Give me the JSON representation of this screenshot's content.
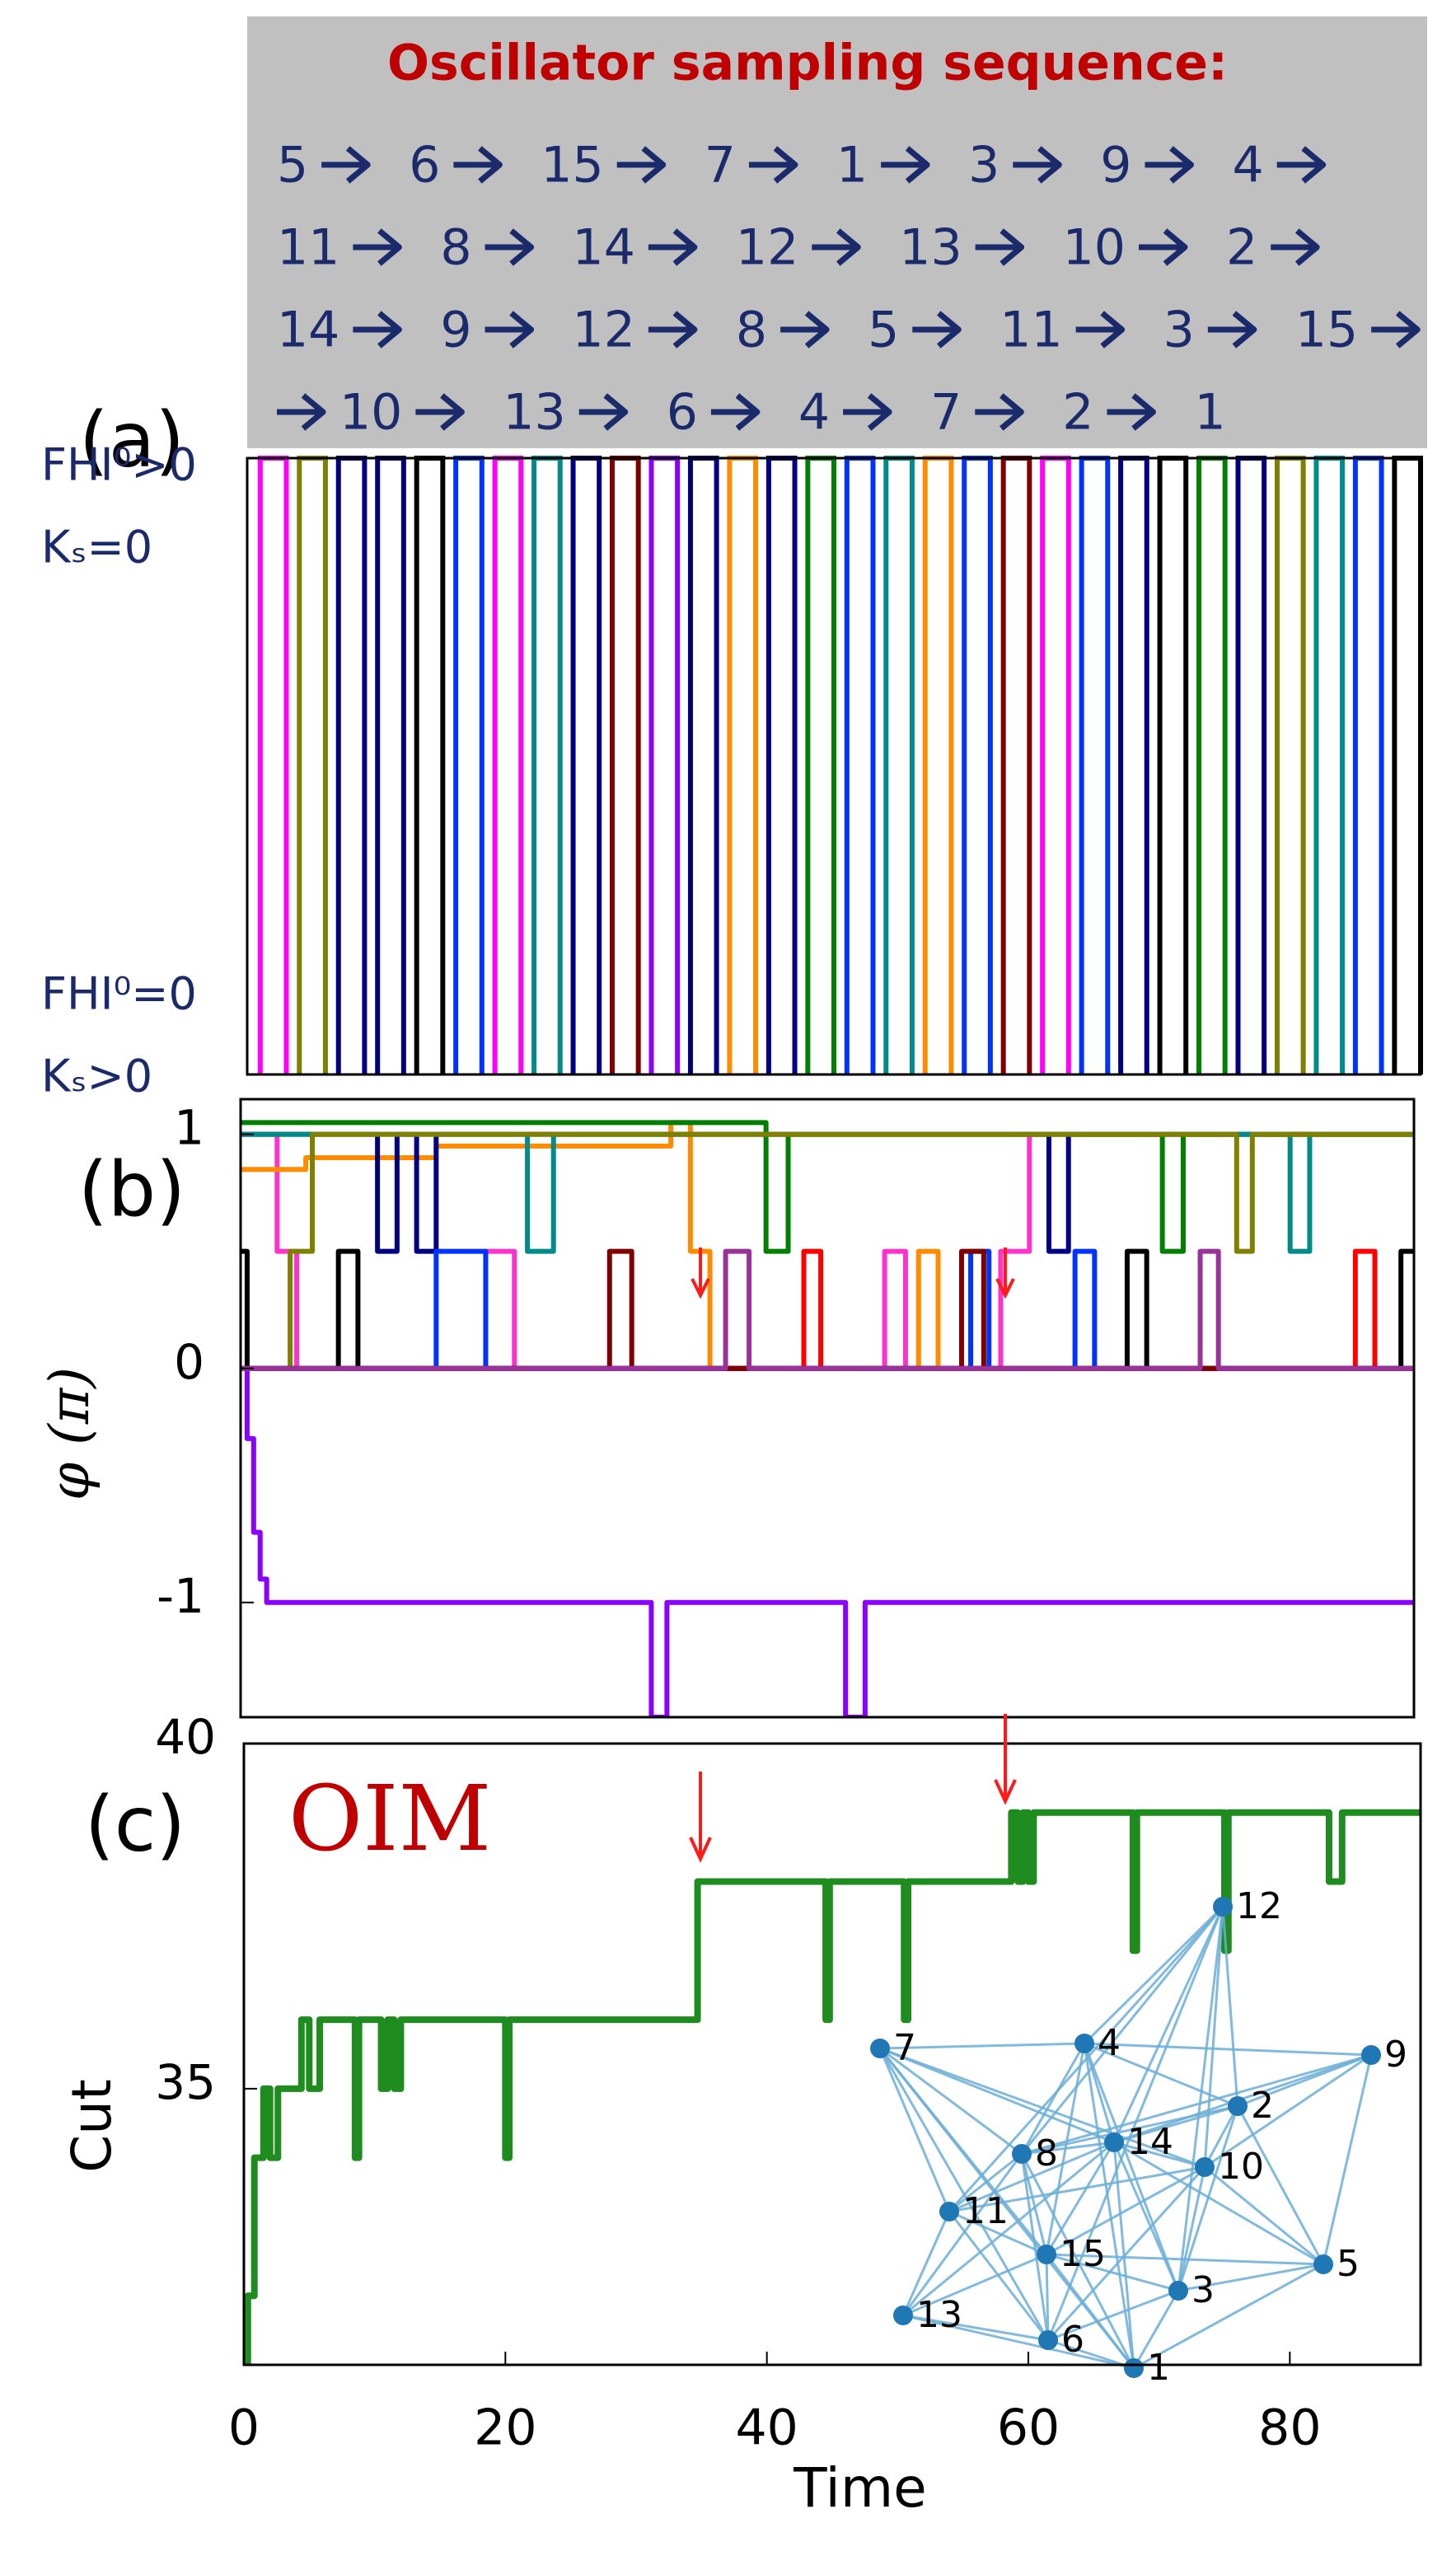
{
  "header": {
    "title": "Oscillator sampling sequence:",
    "sequence_lines": [
      [
        5,
        6,
        15,
        7,
        1,
        3,
        9,
        4
      ],
      [
        11,
        8,
        14,
        12,
        13,
        10,
        2
      ],
      [
        14,
        9,
        12,
        8,
        5,
        11,
        3,
        15
      ],
      [
        10,
        13,
        6,
        4,
        7,
        2,
        1
      ]
    ]
  },
  "chart_data": [
    {
      "type": "pulse",
      "panel_label": "(a)",
      "xlim": [
        0,
        90
      ],
      "ylim": [
        0,
        1
      ],
      "yticks": [
        {
          "value": 1,
          "label": "FHI⁰>0"
        },
        {
          "value": 0,
          "label": "FHI⁰=0"
        }
      ],
      "ytick_sublabels": [
        "Kₛ=0",
        "Kₛ>0"
      ],
      "x": [
        1,
        4,
        7,
        10,
        13,
        16,
        19,
        22,
        25,
        28,
        31,
        34,
        37,
        40,
        43,
        46,
        49,
        52,
        55,
        58,
        61,
        64,
        67,
        70,
        73,
        76,
        79,
        82,
        85,
        88
      ],
      "values": [
        1,
        1,
        1,
        1,
        1,
        1,
        1,
        1,
        1,
        1,
        1,
        1,
        1,
        1,
        1,
        1,
        1,
        1,
        1,
        1,
        1,
        1,
        1,
        1,
        1,
        1,
        1,
        1,
        1,
        1
      ],
      "colors": [
        "#ff00ff",
        "#808000",
        "#000080",
        "#000080",
        "#000000",
        "#0033ff",
        "#ff00ff",
        "#008b8b",
        "#000080",
        "#800000",
        "#8b00ff",
        "#000080",
        "#ff8c00",
        "#000080",
        "#008000",
        "#0033ff",
        "#008b8b",
        "#ff8c00",
        "#0033ff",
        "#800000",
        "#ff00ff",
        "#0033ff",
        "#000080",
        "#000000",
        "#008000",
        "#000080",
        "#808000",
        "#008b8b",
        "#0033ff",
        "#000000"
      ]
    },
    {
      "type": "line",
      "step": true,
      "panel_label": "(b)",
      "ylabel": "φ (π)",
      "xlim": [
        0,
        90
      ],
      "ylim": [
        -1.49,
        1.15
      ],
      "yticks": [
        -1,
        0,
        1
      ],
      "series": [
        {
          "color": "#8b00ff",
          "x": [
            0,
            0.5,
            1,
            1.5,
            2,
            31.5,
            32.7,
            46.4,
            47.9,
            90
          ],
          "values": [
            0,
            -0.3,
            -0.7,
            -0.9,
            -1,
            -1.49,
            -1,
            -1.49,
            -1,
            -1
          ]
        },
        {
          "color": "#ff33cc",
          "x": [
            0,
            2.8,
            4.3,
            18.8,
            21,
            49.4,
            51,
            58.3,
            60.5,
            90
          ],
          "values": [
            1,
            0.5,
            0,
            0.5,
            0,
            0.5,
            0,
            0.5,
            1,
            1
          ]
        },
        {
          "color": "#ff8c00",
          "x": [
            0,
            5,
            15,
            25,
            33,
            34.5,
            36,
            52,
            53.5,
            90
          ],
          "values": [
            0.85,
            0.9,
            0.95,
            0.95,
            1.05,
            0.5,
            0,
            0.5,
            0,
            0
          ]
        },
        {
          "color": "#000080",
          "x": [
            0,
            10.5,
            12,
            13.5,
            15,
            62,
            63.5,
            90
          ],
          "values": [
            1,
            0.5,
            1,
            0.5,
            1,
            0.5,
            1,
            1
          ]
        },
        {
          "color": "#000000",
          "x": [
            0,
            0.5,
            7.5,
            9,
            68,
            69.5,
            89,
            90
          ],
          "values": [
            0.5,
            0,
            0.5,
            0,
            0.5,
            0,
            0.5,
            0.5
          ]
        },
        {
          "color": "#008000",
          "x": [
            0,
            40.3,
            42,
            70.7,
            72.3,
            90
          ],
          "values": [
            1.05,
            0.5,
            1,
            0.5,
            1,
            1
          ]
        },
        {
          "color": "#008b8b",
          "x": [
            0,
            22,
            24,
            80.5,
            82,
            90
          ],
          "values": [
            1,
            0.5,
            1,
            0.5,
            1,
            1
          ]
        },
        {
          "color": "#808000",
          "x": [
            0,
            3.8,
            5.5,
            76.4,
            77.6,
            90
          ],
          "values": [
            0,
            0.5,
            1,
            0.5,
            1,
            1
          ]
        },
        {
          "color": "#ff0000",
          "x": [
            0,
            43.2,
            44.5,
            85.5,
            87,
            90
          ],
          "values": [
            0,
            0.5,
            0,
            0.5,
            0,
            0
          ]
        },
        {
          "color": "#0033ff",
          "x": [
            0,
            15,
            18.8,
            56,
            57.4,
            64,
            65.5,
            90
          ],
          "values": [
            0,
            0.5,
            0,
            0.5,
            0,
            0.5,
            0,
            0
          ]
        },
        {
          "color": "#800000",
          "x": [
            0,
            28.3,
            30,
            55.3,
            57,
            90
          ],
          "values": [
            0,
            0.5,
            0,
            0.5,
            0,
            0
          ]
        },
        {
          "color": "#993399",
          "x": [
            0,
            37.2,
            39,
            73.6,
            75,
            90
          ],
          "values": [
            0,
            0.5,
            0,
            0.5,
            0,
            0
          ]
        }
      ]
    },
    {
      "type": "line",
      "step": true,
      "panel_label": "(c)",
      "annotation": "OIM",
      "ylabel": "Cut",
      "xlabel": "Time",
      "xlim": [
        0,
        90
      ],
      "ylim": [
        31,
        40
      ],
      "xticks": [
        0,
        20,
        40,
        60,
        80
      ],
      "yticks": [
        35,
        40
      ],
      "color": "#1e8c1e",
      "x": [
        0,
        0.3,
        0.8,
        1.5,
        2,
        2.6,
        4.4,
        5,
        5.8,
        8.5,
        8.8,
        10.5,
        11,
        11.5,
        12,
        20,
        20.3,
        34.7,
        44.5,
        44.8,
        50.5,
        50.8,
        58.7,
        59.2,
        59.6,
        60,
        60.4,
        68,
        68.3,
        75,
        75.3,
        83,
        84,
        90
      ],
      "values": [
        31,
        32,
        34,
        35,
        34,
        35,
        36,
        35,
        36,
        34,
        36,
        35,
        36,
        35,
        36,
        34,
        36,
        38,
        36,
        38,
        36,
        38,
        39,
        38,
        39,
        38,
        39,
        37,
        39,
        37,
        39,
        38,
        39,
        39
      ],
      "inset_nodes": [
        "1",
        "2",
        "3",
        "4",
        "5",
        "6",
        "7",
        "8",
        "9",
        "10",
        "11",
        "12",
        "13",
        "14",
        "15"
      ]
    }
  ]
}
